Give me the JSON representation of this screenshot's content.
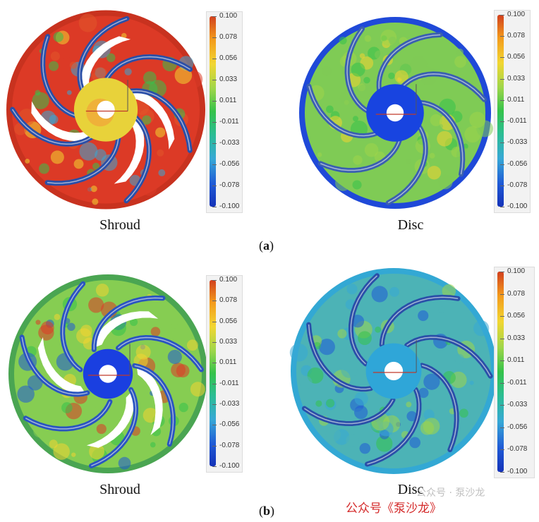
{
  "colorbar": {
    "ticks": [
      "0.100",
      "0.078",
      "0.056",
      "0.033",
      "0.011",
      "-0.011",
      "-0.033",
      "-0.056",
      "-0.078",
      "-0.100"
    ],
    "colors": [
      "#d1401e",
      "#f39a1c",
      "#f2d632",
      "#9ed64a",
      "#35c24a",
      "#2bbd93",
      "#37a8d6",
      "#1f5ad6",
      "#1432b8"
    ]
  },
  "panels": [
    {
      "caption": "Shroud",
      "rim": "#c8321f",
      "hub": "#e8d23a",
      "hub_hole_ring": "#f0a93a",
      "field": "#dc3a26",
      "blade": "#2a4fa8"
    },
    {
      "caption": "Disc",
      "rim": "#1f49d8",
      "hub": "#1844e0",
      "field": "#7fcb55",
      "blade": "#3a60b0"
    },
    {
      "caption": "Shroud",
      "rim": "#4aa552",
      "hub": "#1a3fe0",
      "field": "#86cd52",
      "blade": "#2a55c0"
    },
    {
      "caption": "Disc",
      "rim": "#33a8d4",
      "hub": "#2fa6d8",
      "field": "#4cb3b6",
      "blade": "#2a4fa8"
    }
  ],
  "subfigures": {
    "a": "a",
    "b": "b"
  },
  "watermark": {
    "text": "公众号《泵沙龙》",
    "ghost": "公众号 · 泵沙龙"
  }
}
